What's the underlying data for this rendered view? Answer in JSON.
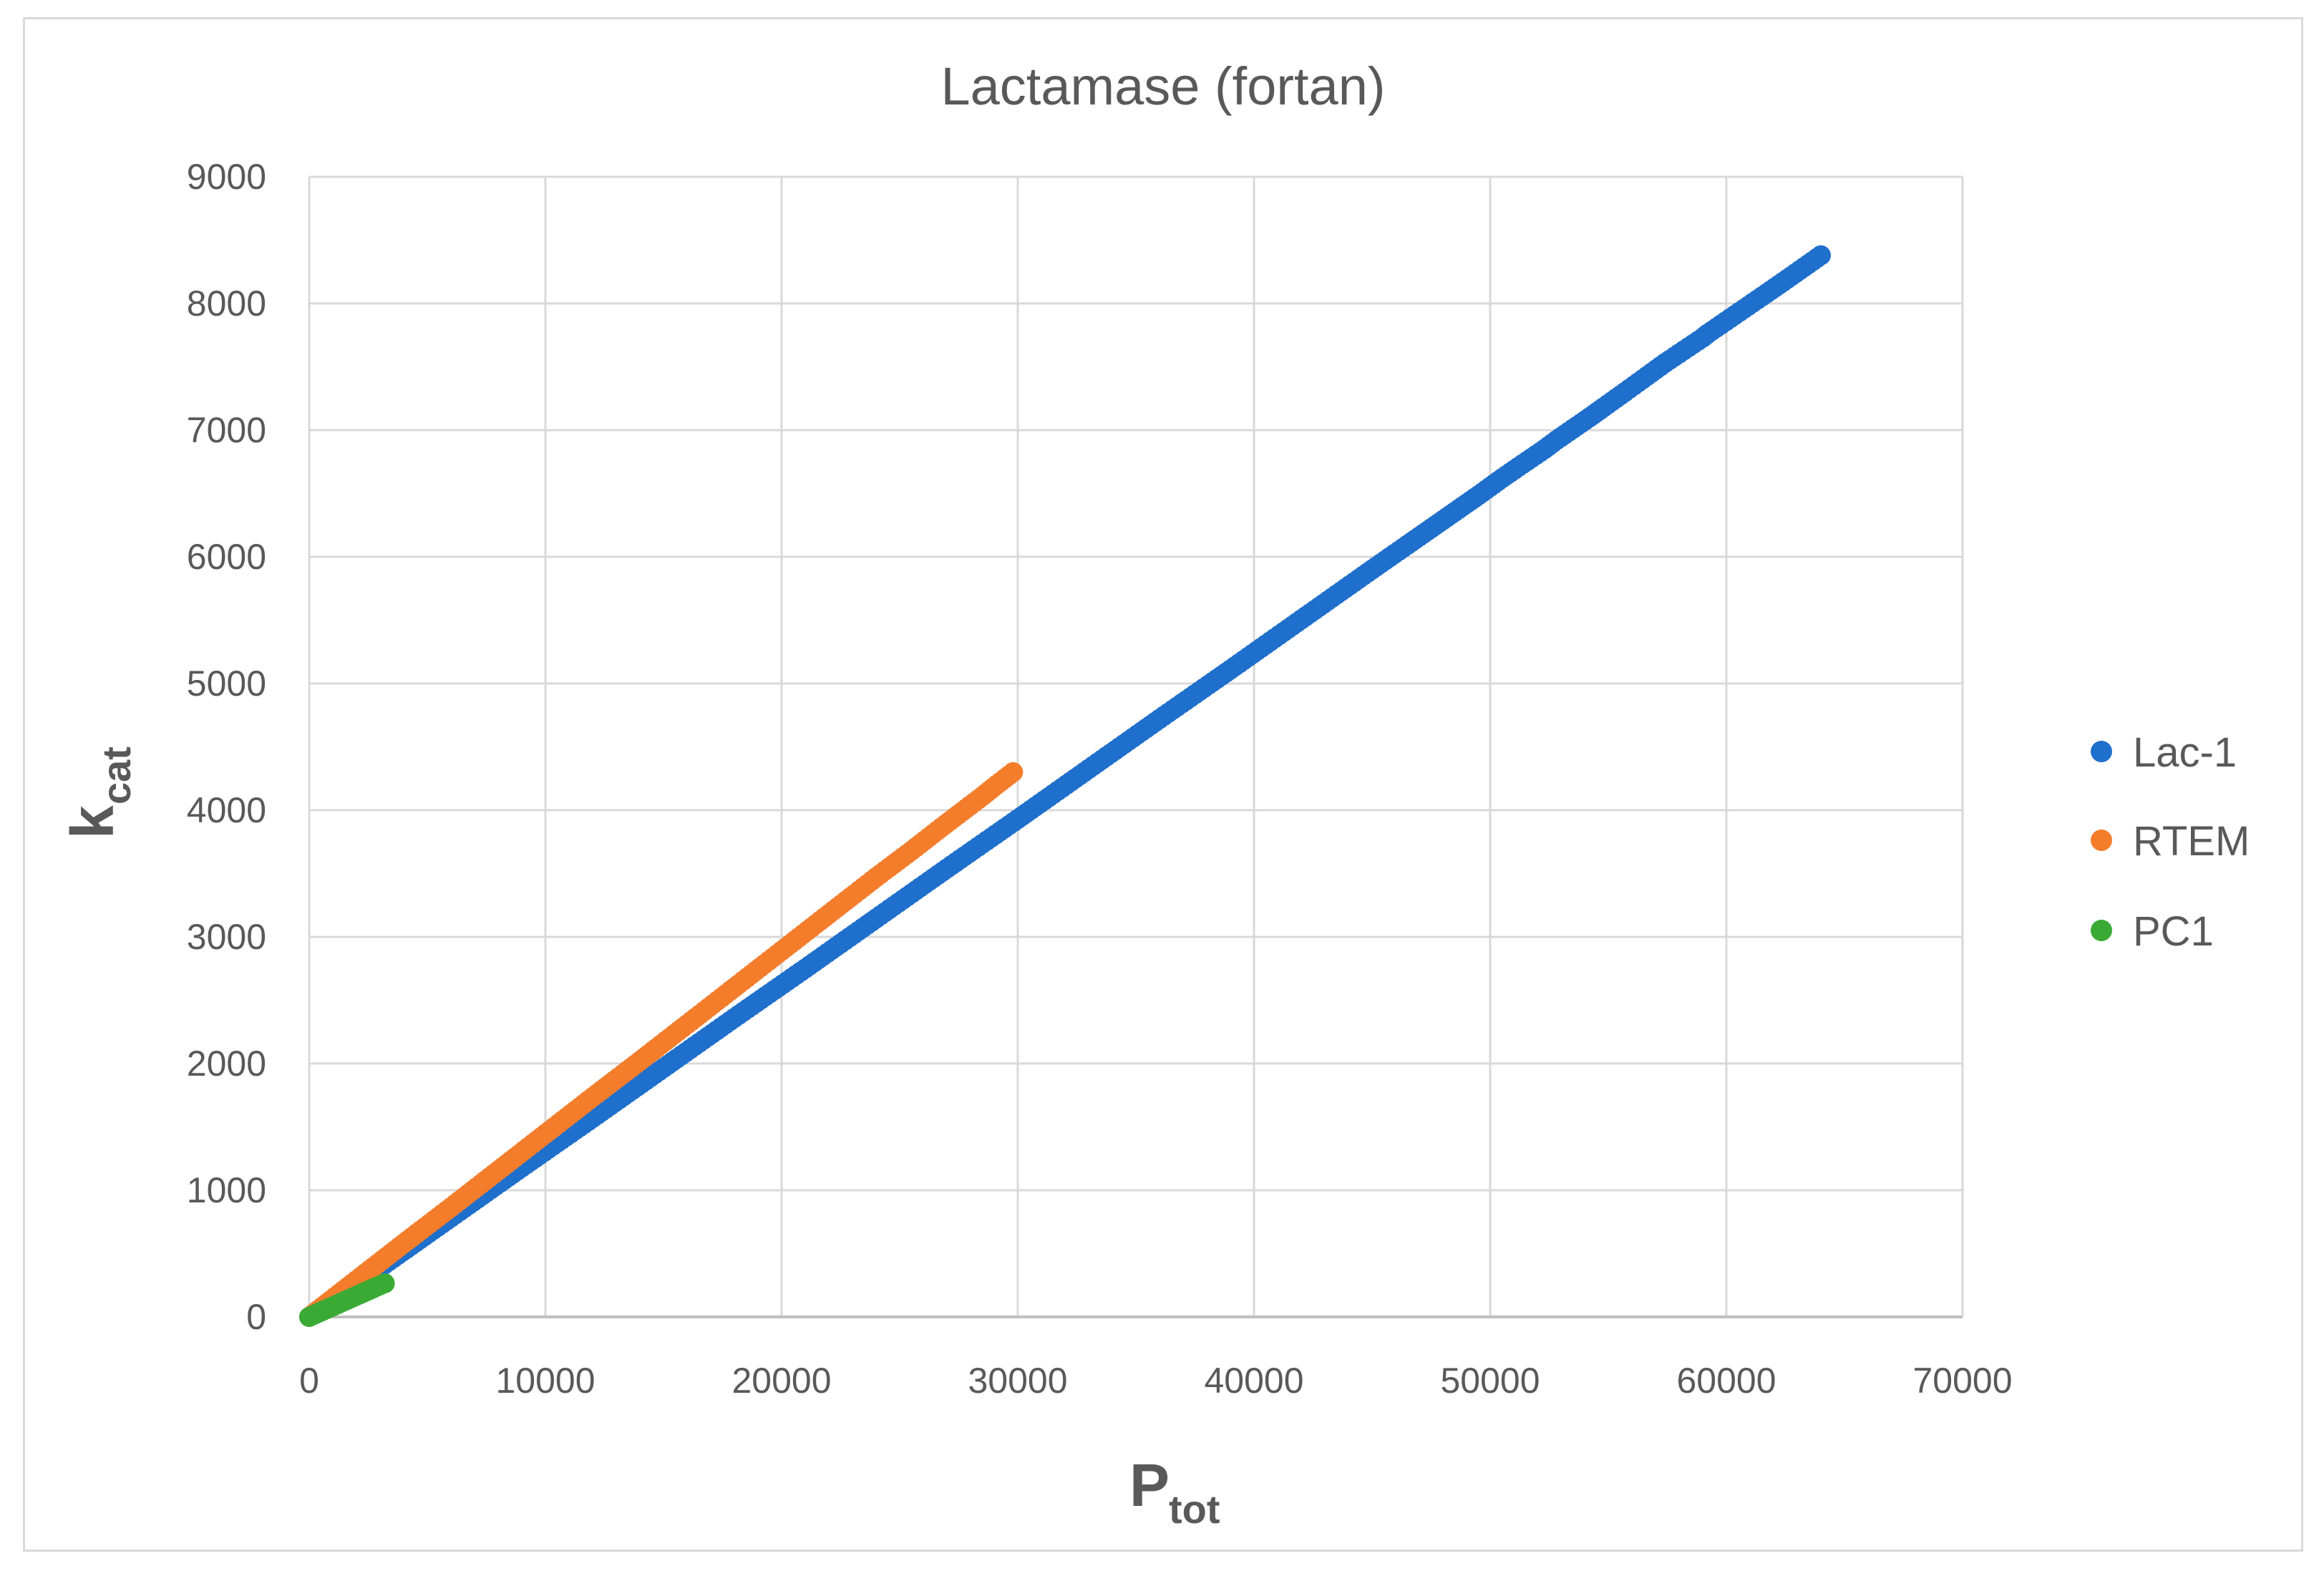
{
  "chart_data": {
    "type": "scatter",
    "title": "Lactamase (fortan)",
    "xlabel": {
      "main": "P",
      "sub": "tot"
    },
    "ylabel": {
      "main": "k",
      "sub": "cat"
    },
    "xlim": [
      0,
      70000
    ],
    "ylim": [
      0,
      9000
    ],
    "xticks": [
      0,
      10000,
      20000,
      30000,
      40000,
      50000,
      60000,
      70000
    ],
    "yticks": [
      0,
      1000,
      2000,
      3000,
      4000,
      5000,
      6000,
      7000,
      8000,
      9000
    ],
    "grid": true,
    "legend_position": "right",
    "series": [
      {
        "name": "Lac-1",
        "color": "#1f6fcc",
        "points": [
          [
            0,
            0
          ],
          [
            3000,
            390
          ],
          [
            6000,
            785
          ],
          [
            9000,
            1180
          ],
          [
            12000,
            1570
          ],
          [
            15000,
            1965
          ],
          [
            18000,
            2360
          ],
          [
            21000,
            2750
          ],
          [
            24000,
            3145
          ],
          [
            27000,
            3540
          ],
          [
            30000,
            3930
          ],
          [
            33000,
            4325
          ],
          [
            36000,
            4720
          ],
          [
            39000,
            5110
          ],
          [
            42000,
            5505
          ],
          [
            45000,
            5900
          ],
          [
            46500,
            6095
          ],
          [
            47500,
            6225
          ],
          [
            48500,
            6355
          ],
          [
            49500,
            6485
          ],
          [
            50500,
            6620
          ],
          [
            51200,
            6710
          ],
          [
            52300,
            6850
          ],
          [
            52800,
            6920
          ],
          [
            54200,
            7100
          ],
          [
            54800,
            7180
          ],
          [
            55700,
            7300
          ],
          [
            57400,
            7530
          ],
          [
            59000,
            7730
          ],
          [
            59200,
            7760
          ],
          [
            61700,
            8080
          ],
          [
            62400,
            8170
          ],
          [
            64000,
            8380
          ]
        ]
      },
      {
        "name": "RTEM",
        "color": "#f47d2c",
        "points": [
          [
            0,
            0
          ],
          [
            2000,
            290
          ],
          [
            4000,
            580
          ],
          [
            6000,
            865
          ],
          [
            8000,
            1155
          ],
          [
            10000,
            1445
          ],
          [
            12000,
            1735
          ],
          [
            14000,
            2020
          ],
          [
            16000,
            2310
          ],
          [
            18000,
            2600
          ],
          [
            20000,
            2890
          ],
          [
            22000,
            3180
          ],
          [
            24000,
            3470
          ],
          [
            25500,
            3680
          ],
          [
            26600,
            3840
          ],
          [
            27300,
            3940
          ],
          [
            28500,
            4110
          ],
          [
            29100,
            4200
          ],
          [
            29800,
            4300
          ]
        ]
      },
      {
        "name": "PC1",
        "color": "#3aaa35",
        "points": [
          [
            0,
            0
          ],
          [
            300,
            25
          ],
          [
            600,
            50
          ],
          [
            900,
            75
          ],
          [
            1200,
            100
          ],
          [
            1500,
            125
          ],
          [
            1800,
            150
          ],
          [
            2100,
            175
          ],
          [
            2400,
            200
          ],
          [
            2700,
            225
          ],
          [
            3000,
            250
          ],
          [
            3200,
            265
          ]
        ]
      }
    ]
  }
}
